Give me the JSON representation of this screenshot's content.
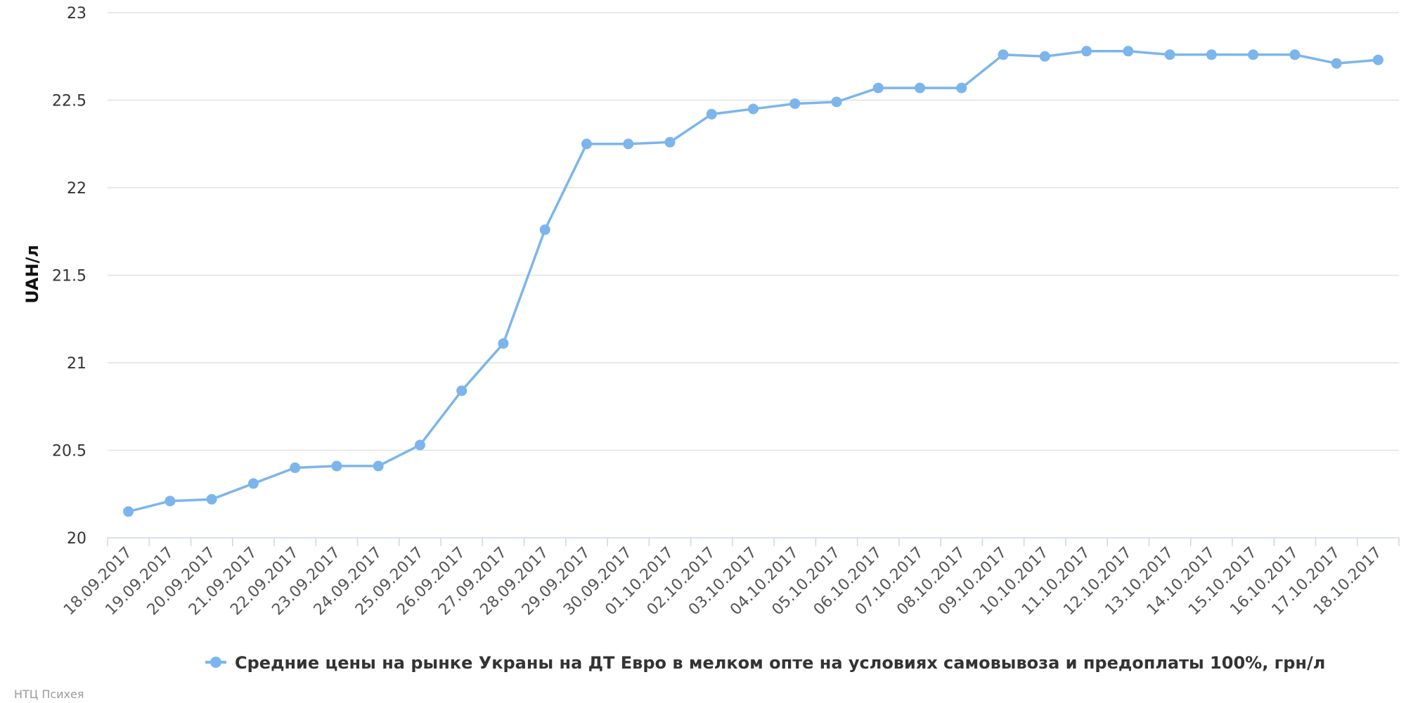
{
  "chart_data": {
    "type": "line",
    "title": "",
    "xlabel": "",
    "ylabel": "UAH/л",
    "ylim": [
      20,
      23
    ],
    "yticks": [
      20,
      20.5,
      21,
      21.5,
      22,
      22.5,
      23
    ],
    "grid": true,
    "legend_position": "bottom-center",
    "categories": [
      "18.09.2017",
      "19.09.2017",
      "20.09.2017",
      "21.09.2017",
      "22.09.2017",
      "23.09.2017",
      "24.09.2017",
      "25.09.2017",
      "26.09.2017",
      "27.09.2017",
      "28.09.2017",
      "29.09.2017",
      "30.09.2017",
      "01.10.2017",
      "02.10.2017",
      "03.10.2017",
      "04.10.2017",
      "05.10.2017",
      "06.10.2017",
      "07.10.2017",
      "08.10.2017",
      "09.10.2017",
      "10.10.2017",
      "11.10.2017",
      "12.10.2017",
      "13.10.2017",
      "14.10.2017",
      "15.10.2017",
      "16.10.2017",
      "17.10.2017",
      "18.10.2017"
    ],
    "series": [
      {
        "name": "Средние цены на рынке Украны на ДТ Евро в мелком опте на условиях самовывоза и предоплаты 100%, грн/л",
        "color": "#7cb5ec",
        "values": [
          20.15,
          20.21,
          20.22,
          20.31,
          20.4,
          20.41,
          20.41,
          20.53,
          20.84,
          21.11,
          21.76,
          22.25,
          22.25,
          22.26,
          22.42,
          22.45,
          22.48,
          22.49,
          22.57,
          22.57,
          22.57,
          22.76,
          22.75,
          22.78,
          22.78,
          22.76,
          22.76,
          22.76,
          22.76,
          22.71,
          22.73
        ]
      }
    ]
  },
  "credits": "НТЦ Психея"
}
